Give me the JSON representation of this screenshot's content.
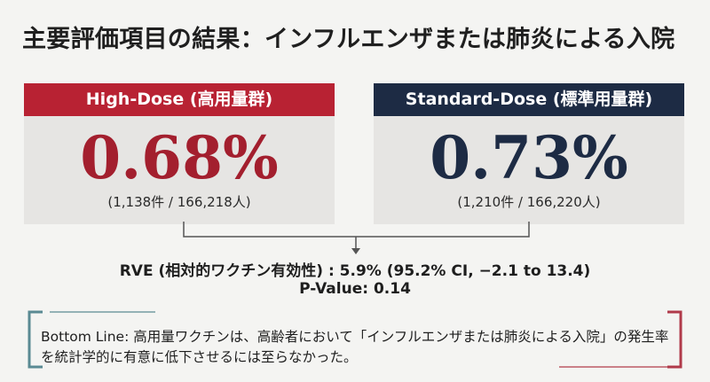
{
  "title": "主要評価項目の結果：インフルエンザまたは肺炎による入院",
  "high_dose": {
    "header": "High-Dose (高用量群)",
    "rate": "0.68%",
    "count": "(1,138件 / 166,218人)"
  },
  "standard_dose": {
    "header": "Standard-Dose (標準用量群)",
    "rate": "0.73%",
    "count": "(1,210件 / 166,220人)"
  },
  "rve": "RVE (相対的ワクチン有効性) : 5.9% (95.2% CI, −2.1 to 13.4)",
  "p_value": "P-Value: 0.14",
  "bottom_line": "Bottom Line: 高用量ワクチンは、高齢者において「インフルエンザまたは肺炎による入院」の発生率を統計学的に有意に低下させるには至らなかった。",
  "colors": {
    "high_dose": "#b82233",
    "standard_dose": "#1d2b44",
    "frame_left": "#5a8a93",
    "frame_right": "#b03a4a"
  }
}
